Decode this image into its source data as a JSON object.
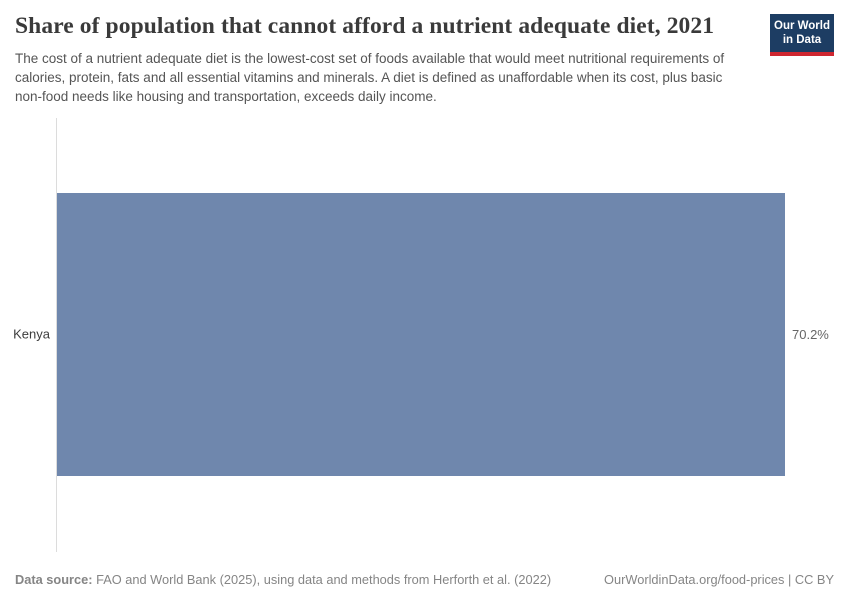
{
  "header": {
    "title": "Share of population that cannot afford a nutrient adequate diet, 2021",
    "subtitle": "The cost of a nutrient adequate diet is the lowest-cost set of foods available that would meet nutritional requirements of calories, protein, fats and all essential vitamins and minerals. A diet is defined as unaffordable when its cost, plus basic non-food needs like housing and transportation, exceeds daily income.",
    "logo": {
      "line1": "Our World",
      "line2": "in Data",
      "bg_color": "#1d3d63",
      "accent_color": "#cf2630"
    }
  },
  "chart_data": {
    "type": "bar",
    "orientation": "horizontal",
    "title": "Share of population that cannot afford a nutrient adequate diet, 2021",
    "year": "2021",
    "categories": [
      "Kenya"
    ],
    "values": [
      70.2
    ],
    "value_labels": [
      "70.2%"
    ],
    "unit": "%",
    "xlabel": "",
    "ylabel": "",
    "xlim": [
      0,
      70.2
    ],
    "grid": false,
    "legend": false,
    "bar_color": "#6f87ad",
    "axis_line_color": "#dcdcdc"
  },
  "footer": {
    "source_label": "Data source:",
    "source_text": " FAO and World Bank (2025), using data and methods from Herforth et al. (2022)",
    "right_text": "OurWorldinData.org/food-prices | CC BY"
  }
}
